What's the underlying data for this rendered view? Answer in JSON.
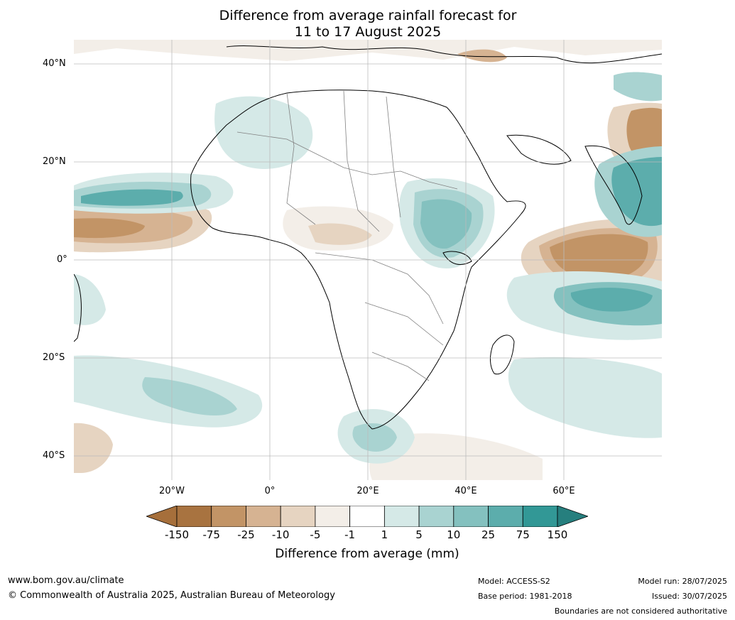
{
  "title": {
    "line1": "Difference from average rainfall forecast for",
    "line2": "11 to 17 August 2025"
  },
  "map": {
    "region": "Africa",
    "lat_labels": [
      "40°N",
      "20°N",
      "0°",
      "20°S",
      "40°S"
    ],
    "lon_labels": [
      "20°W",
      "0°",
      "20°E",
      "40°E",
      "60°E"
    ],
    "lat_range": [
      -45,
      45
    ],
    "lon_range": [
      -40,
      80
    ]
  },
  "colorbar": {
    "label": "Difference from average (mm)",
    "ticks": [
      "-150",
      "-75",
      "-25",
      "-10",
      "-5",
      "-1",
      "1",
      "5",
      "10",
      "25",
      "75",
      "150"
    ],
    "colors": [
      "#a66f3b",
      "#a87340",
      "#c29466",
      "#d6b392",
      "#e6d4c1",
      "#f3eee8",
      "#ffffff",
      "#d5e9e7",
      "#a9d3d1",
      "#84c1bf",
      "#5cadac",
      "#329896",
      "#267f7e"
    ]
  },
  "footer": {
    "website": "www.bom.gov.au/climate",
    "copyright": "© Commonwealth of Australia 2025, Australian Bureau of Meteorology",
    "model": "Model: ACCESS-S2",
    "base_period": "Base period: 1981-2018",
    "model_run": "Model run: 28/07/2025",
    "issued": "Issued: 30/07/2025",
    "disclaimer": "Boundaries are not considered authoritative"
  }
}
